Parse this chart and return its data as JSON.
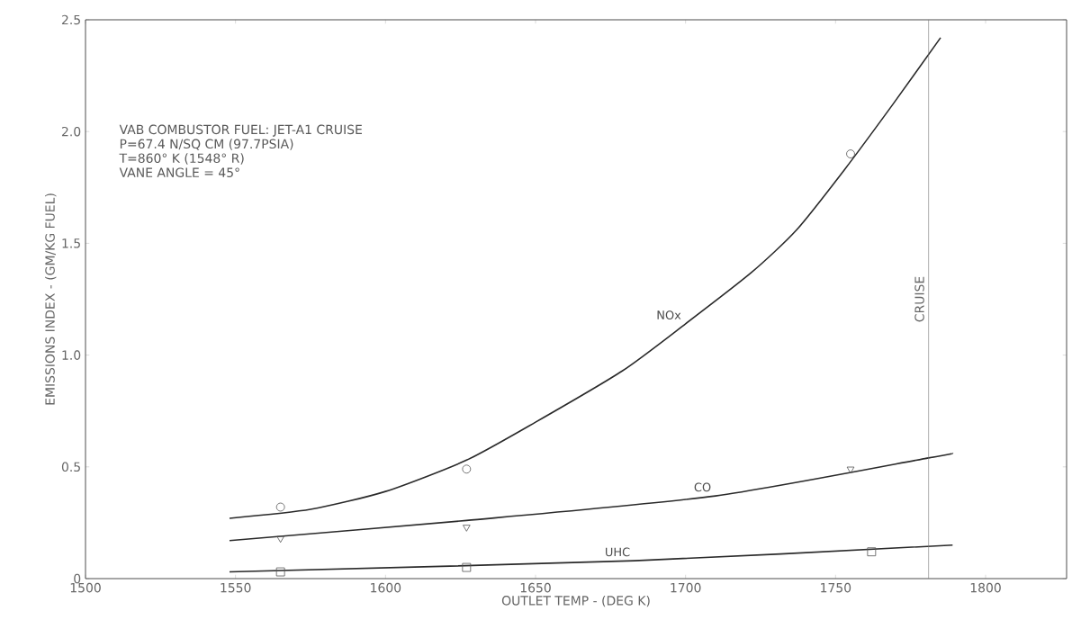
{
  "chart_data": {
    "type": "line",
    "xlabel": "OUTLET TEMP - (DEG K)",
    "ylabel": "EMISSIONS INDEX - (GM/KG FUEL)",
    "annotations": [
      "VAB COMBUSTOR    FUEL: JET-A1   CRUISE",
      "P=67.4 N/SQ CM (97.7PSIA)",
      "T=860° K  (1548° R)",
      "VANE ANGLE = 45°"
    ],
    "xlim": [
      1500,
      1827
    ],
    "ylim": [
      0,
      2.5
    ],
    "xticks": [
      1500,
      1550,
      1600,
      1650,
      1700,
      1750,
      1800
    ],
    "yticks": [
      0,
      {
        "value": 0.5,
        "label": "0.5"
      },
      {
        "value": 1.0,
        "label": "1.0"
      },
      {
        "value": 1.5,
        "label": "1.5"
      },
      {
        "value": 2.0,
        "label": "2.0"
      },
      {
        "value": 2.5,
        "label": "2.5"
      }
    ],
    "grid": false,
    "ref_lines": [
      {
        "axis": "x",
        "value": 1781,
        "label": "CRUISE",
        "color": "#777777"
      }
    ],
    "series": [
      {
        "name": "NOx",
        "color": "#2a2a2a",
        "marker": "none",
        "x": [
          1548,
          1575,
          1600,
          1627,
          1650,
          1679,
          1700,
          1722,
          1737,
          1753,
          1769,
          1785
        ],
        "values": [
          0.27,
          0.31,
          0.39,
          0.53,
          0.7,
          0.93,
          1.14,
          1.37,
          1.56,
          1.83,
          2.12,
          2.42
        ]
      },
      {
        "name": "CO",
        "color": "#2a2a2a",
        "marker": "none",
        "x": [
          1548,
          1627,
          1710,
          1781,
          1789
        ],
        "values": [
          0.17,
          0.26,
          0.37,
          0.54,
          0.56
        ]
      },
      {
        "name": "UHC",
        "color": "#2a2a2a",
        "marker": "none",
        "x": [
          1548,
          1683,
          1789
        ],
        "values": [
          0.03,
          0.08,
          0.15
        ]
      },
      {
        "type": "scatter",
        "color": "#555555",
        "marker": "circle",
        "x": [
          1565,
          1627,
          1755
        ],
        "values": [
          0.32,
          0.49,
          1.9
        ]
      },
      {
        "type": "scatter",
        "color": "#555555",
        "marker": "triangle",
        "x": [
          1565,
          1627,
          1755
        ],
        "values": [
          0.18,
          0.23,
          0.49
        ]
      },
      {
        "type": "scatter",
        "color": "#555555",
        "marker": "square",
        "x": [
          1565,
          1627,
          1762
        ],
        "values": [
          0.03,
          0.05,
          0.12
        ]
      }
    ]
  }
}
